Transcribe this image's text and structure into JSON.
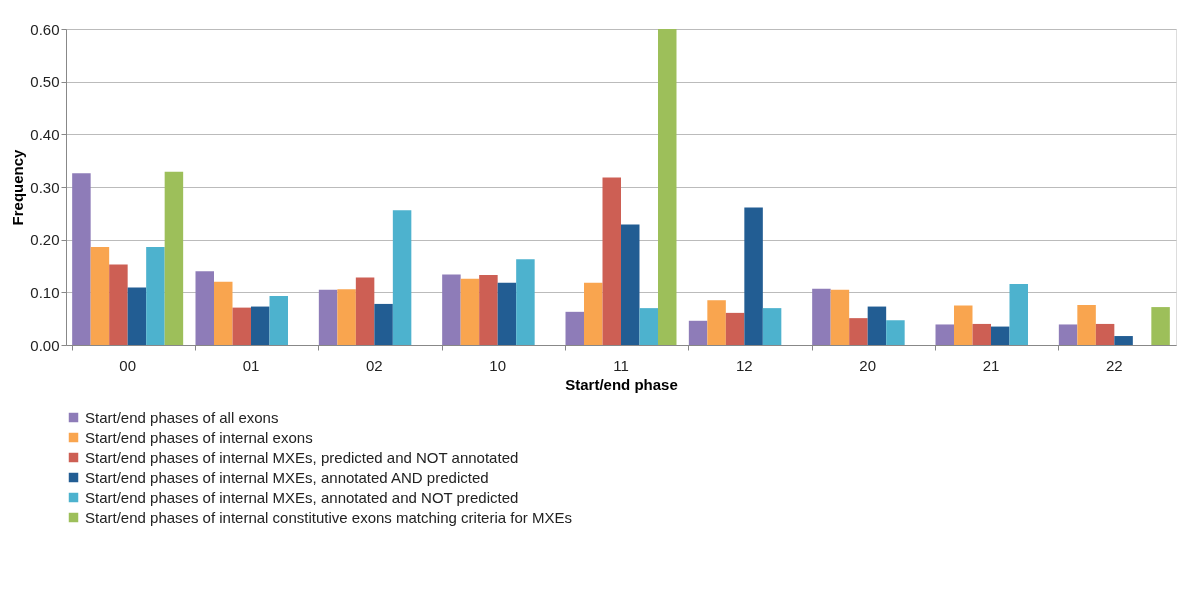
{
  "chart_data": {
    "type": "bar",
    "xlabel": "Start/end phase",
    "ylabel": "Frequency",
    "categories": [
      "00",
      "01",
      "02",
      "10",
      "11",
      "12",
      "20",
      "21",
      "22"
    ],
    "series": [
      {
        "name": "Start/end phases of all exons",
        "color": "#8e7cb8",
        "values": [
          0.326,
          0.14,
          0.105,
          0.134,
          0.063,
          0.046,
          0.107,
          0.039,
          0.039
        ]
      },
      {
        "name": "Start/end phases of internal exons",
        "color": "#f9a54f",
        "values": [
          0.186,
          0.12,
          0.106,
          0.126,
          0.118,
          0.085,
          0.105,
          0.075,
          0.076
        ]
      },
      {
        "name": "Start/end phases of internal MXEs, predicted and NOT annotated",
        "color": "#cd5f54",
        "values": [
          0.153,
          0.071,
          0.128,
          0.133,
          0.318,
          0.061,
          0.051,
          0.04,
          0.04
        ]
      },
      {
        "name": "Start/end phases of internal MXEs, annotated AND predicted",
        "color": "#225d93",
        "values": [
          0.109,
          0.073,
          0.078,
          0.118,
          0.229,
          0.261,
          0.073,
          0.035,
          0.017
        ]
      },
      {
        "name": "Start/end phases of internal MXEs, annotated and NOT predicted",
        "color": "#4db2ce",
        "values": [
          0.186,
          0.093,
          0.256,
          0.163,
          0.07,
          0.07,
          0.047,
          0.116,
          null
        ]
      },
      {
        "name": "Start/end phases of internal constitutive exons matching criteria for MXEs",
        "color": "#9dbf5a",
        "values": [
          0.329,
          null,
          null,
          null,
          0.6,
          null,
          null,
          null,
          0.072
        ]
      }
    ],
    "ylim": [
      0,
      0.6
    ],
    "yticks": [
      {
        "value": 0,
        "label": "0.00"
      },
      {
        "value": 0.1,
        "label": "0.10"
      },
      {
        "value": 0.2,
        "label": "0.20"
      },
      {
        "value": 0.3,
        "label": "0.30"
      },
      {
        "value": 0.4,
        "label": "0.40"
      },
      {
        "value": 0.5,
        "label": "0.50"
      },
      {
        "value": 0.6,
        "label": "0.60"
      }
    ],
    "grid": "y",
    "legend": "bottom"
  }
}
